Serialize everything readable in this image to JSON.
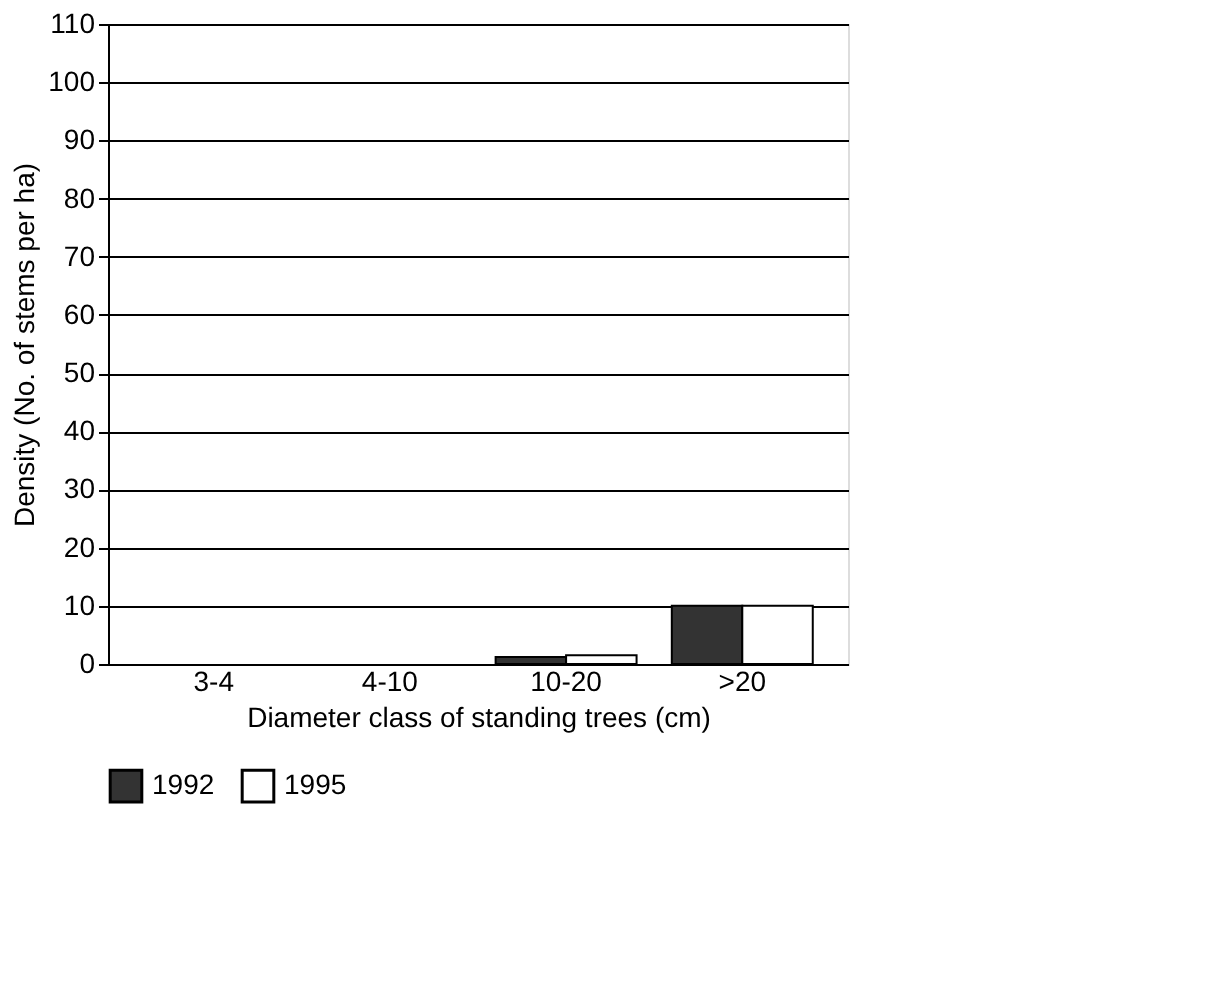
{
  "chart_data": {
    "type": "bar",
    "xlabel": "Diameter class of standing trees (cm)",
    "ylabel": "Density (No. of stems per ha)",
    "categories": [
      "3-4",
      "4-10",
      "10-20",
      ">20"
    ],
    "series": [
      {
        "name": "1992",
        "color": "#333333",
        "values": [
          0,
          0,
          1.2,
          10
        ]
      },
      {
        "name": "1995",
        "color": "#ffffff",
        "values": [
          0,
          0,
          1.5,
          10
        ]
      }
    ],
    "ylim": [
      0,
      110
    ],
    "yticks": [
      0,
      10,
      20,
      30,
      40,
      50,
      60,
      70,
      80,
      90,
      100,
      110
    ],
    "grid": "y",
    "legend": "bottom"
  }
}
